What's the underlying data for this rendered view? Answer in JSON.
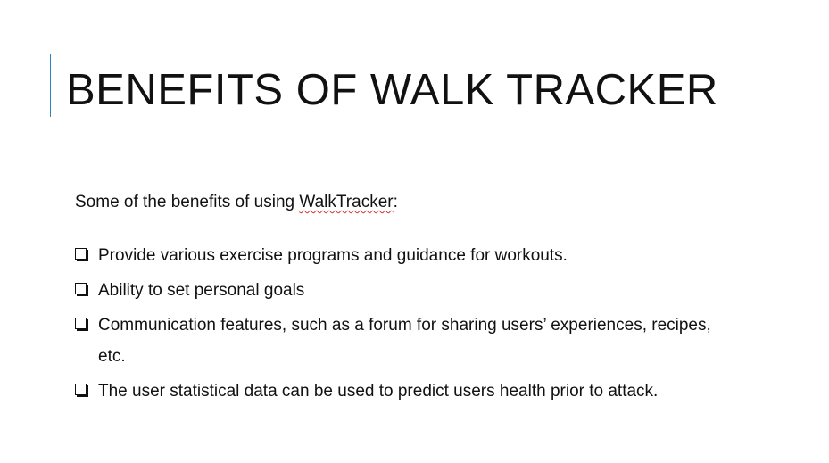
{
  "slide": {
    "title": "BENEFITS OF WALK TRACKER",
    "intro_before": "Some of the benefits of using ",
    "intro_highlight": "WalkTracker",
    "intro_after": ":",
    "bullets": [
      "Provide various exercise programs and guidance for workouts.",
      "Ability to set personal goals",
      "Communication features, such as a forum for sharing users’ experiences, recipes, etc.",
      "The user statistical data can be used to predict users health prior to attack."
    ]
  },
  "colors": {
    "accent_line": "#2e86c1",
    "text": "#111111",
    "spellcheck_underline": "#d03030"
  },
  "icons": {
    "bullet": "square-checkbox-icon"
  }
}
